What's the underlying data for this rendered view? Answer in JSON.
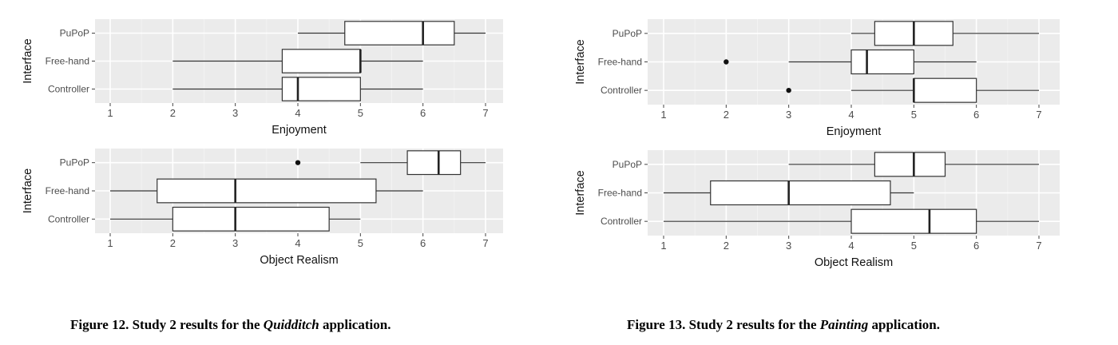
{
  "figures": [
    {
      "caption": {
        "prefix": "Figure 12. Study 2 results for the ",
        "italic": "Quidditch",
        "suffix": " application."
      },
      "panels": [
        {
          "chart_data": {
            "type": "boxplot",
            "ylabel": "Interface",
            "xlabel": "Enjoyment",
            "categories": [
              "PuPoP",
              "Free-hand",
              "Controller"
            ],
            "xlim": [
              1,
              7
            ],
            "xticks": [
              "1",
              "2",
              "3",
              "4",
              "5",
              "6",
              "7"
            ],
            "grid": true,
            "boxes": [
              {
                "category": "PuPoP",
                "whisker_low": 4,
                "q1": 4.75,
                "median": 6,
                "q3": 6.5,
                "whisker_high": 7,
                "outliers": []
              },
              {
                "category": "Free-hand",
                "whisker_low": 2,
                "q1": 3.75,
                "median": 5,
                "q3": 5,
                "whisker_high": 6,
                "outliers": []
              },
              {
                "category": "Controller",
                "whisker_low": 2,
                "q1": 3.75,
                "median": 4,
                "q3": 5,
                "whisker_high": 6,
                "outliers": []
              }
            ]
          }
        },
        {
          "chart_data": {
            "type": "boxplot",
            "ylabel": "Interface",
            "xlabel": "Object Realism",
            "categories": [
              "PuPoP",
              "Free-hand",
              "Controller"
            ],
            "xlim": [
              1,
              7
            ],
            "xticks": [
              "1",
              "2",
              "3",
              "4",
              "5",
              "6",
              "7"
            ],
            "grid": true,
            "boxes": [
              {
                "category": "PuPoP",
                "whisker_low": 5,
                "q1": 5.75,
                "median": 6.25,
                "q3": 6.6,
                "whisker_high": 7,
                "outliers": [
                  4
                ]
              },
              {
                "category": "Free-hand",
                "whisker_low": 1,
                "q1": 1.75,
                "median": 3,
                "q3": 5.25,
                "whisker_high": 6,
                "outliers": []
              },
              {
                "category": "Controller",
                "whisker_low": 1,
                "q1": 2,
                "median": 3,
                "q3": 4.5,
                "whisker_high": 5,
                "outliers": []
              }
            ]
          }
        }
      ]
    },
    {
      "caption": {
        "prefix": "Figure 13. Study 2 results for the ",
        "italic": "Painting",
        "suffix": " application."
      },
      "panels": [
        {
          "chart_data": {
            "type": "boxplot",
            "ylabel": "Interface",
            "xlabel": "Enjoyment",
            "categories": [
              "PuPoP",
              "Free-hand",
              "Controller"
            ],
            "xlim": [
              1,
              7
            ],
            "xticks": [
              "1",
              "2",
              "3",
              "4",
              "5",
              "6",
              "7"
            ],
            "grid": true,
            "boxes": [
              {
                "category": "PuPoP",
                "whisker_low": 4,
                "q1": 4.375,
                "median": 5,
                "q3": 5.625,
                "whisker_high": 7,
                "outliers": []
              },
              {
                "category": "Free-hand",
                "whisker_low": 3,
                "q1": 4,
                "median": 4.25,
                "q3": 5,
                "whisker_high": 6,
                "outliers": [
                  2
                ]
              },
              {
                "category": "Controller",
                "whisker_low": 4,
                "q1": 5,
                "median": 5,
                "q3": 6,
                "whisker_high": 7,
                "outliers": [
                  3
                ]
              }
            ]
          }
        },
        {
          "chart_data": {
            "type": "boxplot",
            "ylabel": "Interface",
            "xlabel": "Object Realism",
            "categories": [
              "PuPoP",
              "Free-hand",
              "Controller"
            ],
            "xlim": [
              1,
              7
            ],
            "xticks": [
              "1",
              "2",
              "3",
              "4",
              "5",
              "6",
              "7"
            ],
            "grid": true,
            "boxes": [
              {
                "category": "PuPoP",
                "whisker_low": 3,
                "q1": 4.375,
                "median": 5,
                "q3": 5.5,
                "whisker_high": 7,
                "outliers": []
              },
              {
                "category": "Free-hand",
                "whisker_low": 1,
                "q1": 1.75,
                "median": 3,
                "q3": 4.625,
                "whisker_high": 5,
                "outliers": []
              },
              {
                "category": "Controller",
                "whisker_low": 1,
                "q1": 4,
                "median": 5.25,
                "q3": 6,
                "whisker_high": 7,
                "outliers": []
              }
            ]
          }
        }
      ]
    }
  ]
}
